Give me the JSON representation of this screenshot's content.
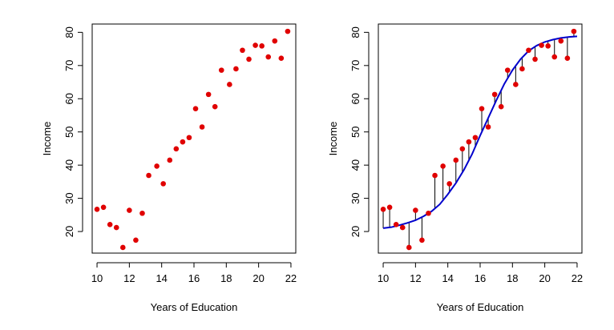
{
  "chart_data": [
    {
      "type": "scatter",
      "xlabel": "Years of Education",
      "ylabel": "Income",
      "xlim": [
        9.7,
        22.3
      ],
      "ylim": [
        13.5,
        82.5
      ],
      "x_ticks": [
        10,
        12,
        14,
        16,
        18,
        20,
        22
      ],
      "y_ticks": [
        20,
        30,
        40,
        50,
        60,
        70,
        80
      ],
      "x_tick_labels": [
        "10",
        "12",
        "14",
        "16",
        "18",
        "20",
        "22"
      ],
      "y_tick_labels": [
        "20",
        "30",
        "40",
        "50",
        "60",
        "70",
        "80"
      ],
      "grid": false,
      "point_color": "#e00000",
      "points": [
        {
          "x": 10.0,
          "y": 26.7
        },
        {
          "x": 10.4,
          "y": 27.3
        },
        {
          "x": 10.8,
          "y": 22.1
        },
        {
          "x": 11.2,
          "y": 21.2
        },
        {
          "x": 11.6,
          "y": 15.2
        },
        {
          "x": 12.0,
          "y": 26.4
        },
        {
          "x": 12.4,
          "y": 17.4
        },
        {
          "x": 12.8,
          "y": 25.5
        },
        {
          "x": 13.2,
          "y": 36.9
        },
        {
          "x": 13.7,
          "y": 39.7
        },
        {
          "x": 14.1,
          "y": 34.4
        },
        {
          "x": 14.5,
          "y": 41.5
        },
        {
          "x": 14.9,
          "y": 44.9
        },
        {
          "x": 15.3,
          "y": 47.0
        },
        {
          "x": 15.7,
          "y": 48.3
        },
        {
          "x": 16.1,
          "y": 57.0
        },
        {
          "x": 16.5,
          "y": 51.5
        },
        {
          "x": 16.9,
          "y": 61.3
        },
        {
          "x": 17.3,
          "y": 57.6
        },
        {
          "x": 17.7,
          "y": 68.6
        },
        {
          "x": 18.2,
          "y": 64.3
        },
        {
          "x": 18.6,
          "y": 69.0
        },
        {
          "x": 19.0,
          "y": 74.6
        },
        {
          "x": 19.4,
          "y": 71.9
        },
        {
          "x": 19.8,
          "y": 76.1
        },
        {
          "x": 20.2,
          "y": 75.9
        },
        {
          "x": 20.6,
          "y": 72.6
        },
        {
          "x": 21.0,
          "y": 77.4
        },
        {
          "x": 21.4,
          "y": 72.2
        },
        {
          "x": 21.8,
          "y": 80.3
        }
      ]
    },
    {
      "type": "scatter",
      "xlabel": "Years of Education",
      "ylabel": "Income",
      "xlim": [
        9.7,
        22.3
      ],
      "ylim": [
        13.5,
        82.5
      ],
      "x_ticks": [
        10,
        12,
        14,
        16,
        18,
        20,
        22
      ],
      "y_ticks": [
        20,
        30,
        40,
        50,
        60,
        70,
        80
      ],
      "x_tick_labels": [
        "10",
        "12",
        "14",
        "16",
        "18",
        "20",
        "22"
      ],
      "y_tick_labels": [
        "20",
        "30",
        "40",
        "50",
        "60",
        "70",
        "80"
      ],
      "grid": false,
      "point_color": "#e00000",
      "fit_color": "#0000cc",
      "residual_color": "#000000",
      "points": [
        {
          "x": 10.0,
          "y": 26.7
        },
        {
          "x": 10.4,
          "y": 27.3
        },
        {
          "x": 10.8,
          "y": 22.1
        },
        {
          "x": 11.2,
          "y": 21.2
        },
        {
          "x": 11.6,
          "y": 15.2
        },
        {
          "x": 12.0,
          "y": 26.4
        },
        {
          "x": 12.4,
          "y": 17.4
        },
        {
          "x": 12.8,
          "y": 25.5
        },
        {
          "x": 13.2,
          "y": 36.9
        },
        {
          "x": 13.7,
          "y": 39.7
        },
        {
          "x": 14.1,
          "y": 34.4
        },
        {
          "x": 14.5,
          "y": 41.5
        },
        {
          "x": 14.9,
          "y": 44.9
        },
        {
          "x": 15.3,
          "y": 47.0
        },
        {
          "x": 15.7,
          "y": 48.3
        },
        {
          "x": 16.1,
          "y": 57.0
        },
        {
          "x": 16.5,
          "y": 51.5
        },
        {
          "x": 16.9,
          "y": 61.3
        },
        {
          "x": 17.3,
          "y": 57.6
        },
        {
          "x": 17.7,
          "y": 68.6
        },
        {
          "x": 18.2,
          "y": 64.3
        },
        {
          "x": 18.6,
          "y": 69.0
        },
        {
          "x": 19.0,
          "y": 74.6
        },
        {
          "x": 19.4,
          "y": 71.9
        },
        {
          "x": 19.8,
          "y": 76.1
        },
        {
          "x": 20.2,
          "y": 75.9
        },
        {
          "x": 20.6,
          "y": 72.6
        },
        {
          "x": 21.0,
          "y": 77.4
        },
        {
          "x": 21.4,
          "y": 72.2
        },
        {
          "x": 21.8,
          "y": 80.3
        }
      ],
      "fit_curve": [
        {
          "x": 10.0,
          "y": 21.0
        },
        {
          "x": 10.5,
          "y": 21.3
        },
        {
          "x": 11.0,
          "y": 21.9
        },
        {
          "x": 11.5,
          "y": 22.6
        },
        {
          "x": 12.0,
          "y": 23.4
        },
        {
          "x": 12.5,
          "y": 24.6
        },
        {
          "x": 13.0,
          "y": 26.1
        },
        {
          "x": 13.5,
          "y": 28.2
        },
        {
          "x": 14.0,
          "y": 31.2
        },
        {
          "x": 14.5,
          "y": 34.6
        },
        {
          "x": 15.0,
          "y": 38.6
        },
        {
          "x": 15.5,
          "y": 43.3
        },
        {
          "x": 16.0,
          "y": 48.9
        },
        {
          "x": 16.5,
          "y": 54.2
        },
        {
          "x": 17.0,
          "y": 59.5
        },
        {
          "x": 17.5,
          "y": 64.5
        },
        {
          "x": 18.0,
          "y": 68.6
        },
        {
          "x": 18.5,
          "y": 71.9
        },
        {
          "x": 19.0,
          "y": 74.4
        },
        {
          "x": 19.5,
          "y": 76.0
        },
        {
          "x": 20.0,
          "y": 77.1
        },
        {
          "x": 20.5,
          "y": 77.8
        },
        {
          "x": 21.0,
          "y": 78.3
        },
        {
          "x": 21.5,
          "y": 78.6
        },
        {
          "x": 22.0,
          "y": 78.8
        }
      ]
    }
  ]
}
